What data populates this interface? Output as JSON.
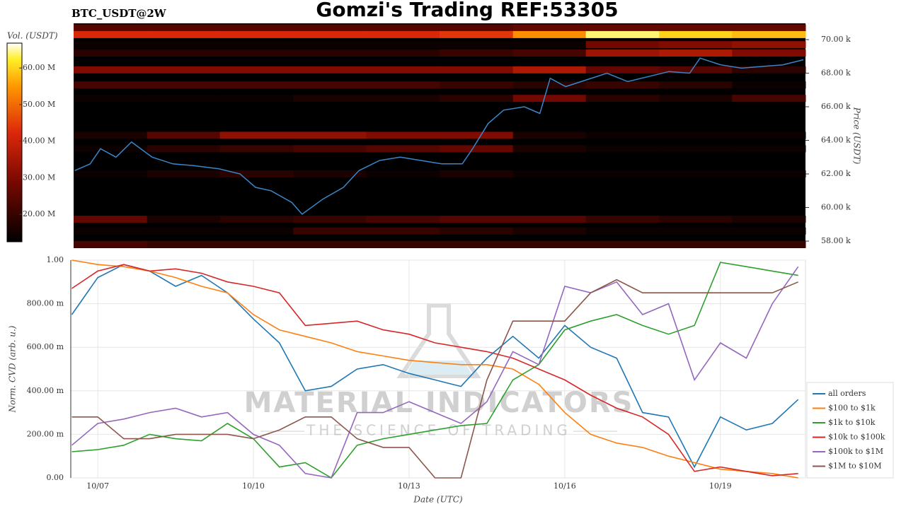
{
  "chart_data": [
    {
      "type": "heatmap",
      "title": "Gomzi's Trading REF:53305",
      "subtitle": "BTC_USDT@2W",
      "y_label": "Price (USDT)",
      "xlim": [
        6.48,
        20.64
      ],
      "ylim": [
        57580,
        70970
      ],
      "yticks": [
        {
          "value": 58000,
          "label": "58.00 k"
        },
        {
          "value": 60000,
          "label": "60.00 k"
        },
        {
          "value": 62000,
          "label": "62.00 k"
        },
        {
          "value": 64000,
          "label": "64.00 k"
        },
        {
          "value": 66000,
          "label": "66.00 k"
        },
        {
          "value": 68000,
          "label": "68.00 k"
        },
        {
          "value": 70000,
          "label": "70.00 k"
        }
      ],
      "colorbar": {
        "label": "Vol. (USDT)",
        "lim": [
          12500000,
          66800000
        ],
        "ticks": [
          {
            "value": 20000000,
            "label": "20.00 M"
          },
          {
            "value": 30000000,
            "label": "30.00 M"
          },
          {
            "value": 40000000,
            "label": "40.00 M"
          },
          {
            "value": 50000000,
            "label": "50.00 M"
          },
          {
            "value": 60000000,
            "label": "60.00 M"
          }
        ]
      },
      "x_edges": [
        6.48,
        7.9,
        9.31,
        10.73,
        12.14,
        13.56,
        14.98,
        16.39,
        17.81,
        19.22,
        20.64
      ],
      "levels": [
        70700,
        70300,
        69700,
        69200,
        68200,
        67300,
        66500,
        64300,
        63500,
        62000,
        59300,
        58600,
        57800
      ],
      "volumes": [
        [
          24000000,
          24000000,
          24000000,
          24000000,
          24000000,
          24000000,
          26000000,
          26000000,
          26000000,
          26000000
        ],
        [
          42000000,
          42000000,
          42000000,
          42000000,
          42000000,
          44000000,
          54000000,
          64000000,
          60000000,
          58000000
        ],
        [
          14000000,
          14000000,
          14000000,
          14000000,
          14000000,
          14000000,
          14000000,
          28000000,
          30000000,
          32000000
        ],
        [
          18000000,
          18000000,
          18000000,
          18000000,
          18000000,
          20000000,
          22000000,
          34000000,
          36000000,
          30000000
        ],
        [
          30000000,
          30000000,
          30000000,
          30000000,
          30000000,
          30000000,
          36000000,
          26000000,
          24000000,
          18000000
        ],
        [
          22000000,
          22000000,
          22000000,
          22000000,
          22000000,
          20000000,
          18000000,
          20000000,
          18000000,
          14000000
        ],
        [
          14000000,
          14000000,
          14000000,
          16000000,
          16000000,
          18000000,
          28000000,
          18000000,
          16000000,
          22000000
        ],
        [
          16000000,
          24000000,
          32000000,
          32000000,
          30000000,
          30000000,
          16000000,
          14000000,
          14000000,
          14000000
        ],
        [
          14000000,
          18000000,
          20000000,
          22000000,
          24000000,
          26000000,
          16000000,
          14000000,
          14000000,
          14000000
        ],
        [
          14000000,
          16000000,
          18000000,
          16000000,
          14000000,
          16000000,
          14000000,
          14000000,
          14000000,
          14000000
        ],
        [
          26000000,
          16000000,
          18000000,
          20000000,
          22000000,
          24000000,
          24000000,
          20000000,
          18000000,
          16000000
        ],
        [
          14000000,
          14000000,
          14000000,
          20000000,
          20000000,
          18000000,
          16000000,
          14000000,
          14000000,
          14000000
        ],
        [
          22000000,
          20000000,
          20000000,
          20000000,
          20000000,
          20000000,
          20000000,
          20000000,
          20000000,
          20000000
        ]
      ],
      "price": {
        "color": "#3a86c8",
        "x": [
          6.5,
          6.8,
          7.0,
          7.3,
          7.6,
          8.0,
          8.4,
          8.8,
          9.3,
          9.7,
          10.0,
          10.3,
          10.7,
          10.9,
          11.3,
          11.7,
          12.0,
          12.4,
          12.8,
          13.2,
          13.6,
          14.0,
          14.2,
          14.5,
          14.8,
          15.2,
          15.5,
          15.7,
          16.0,
          16.4,
          16.8,
          17.2,
          17.6,
          18.0,
          18.4,
          18.6,
          19.0,
          19.4,
          19.8,
          20.2,
          20.6
        ],
        "values": [
          62200,
          62600,
          63500,
          63000,
          63900,
          63000,
          62600,
          62500,
          62300,
          62000,
          61200,
          61000,
          60300,
          59600,
          60500,
          61200,
          62200,
          62800,
          63000,
          62800,
          62600,
          62600,
          63500,
          65000,
          65800,
          66000,
          65600,
          67700,
          67200,
          67600,
          68000,
          67500,
          67800,
          68100,
          68000,
          68900,
          68500,
          68300,
          68400,
          68500,
          68800
        ]
      }
    },
    {
      "type": "line",
      "x_label": "Date (UTC)",
      "y_label": "Norm. CVD (arb. u.)",
      "watermark": [
        "MATERIAL INDICATORS",
        "THE SCIENCE OF TRADING"
      ],
      "xlim": [
        6.48,
        20.64
      ],
      "xticks": [
        {
          "value": 7,
          "label": "10/07"
        },
        {
          "value": 10,
          "label": "10/10"
        },
        {
          "value": 13,
          "label": "10/13"
        },
        {
          "value": 16,
          "label": "10/16"
        },
        {
          "value": 19,
          "label": "10/19"
        }
      ],
      "ylim": [
        0,
        1
      ],
      "yticks": [
        {
          "value": 0,
          "label": "0.00"
        },
        {
          "value": 0.2,
          "label": "200.00 m"
        },
        {
          "value": 0.4,
          "label": "400.00 m"
        },
        {
          "value": 0.6,
          "label": "600.00 m"
        },
        {
          "value": 0.8,
          "label": "800.00 m"
        },
        {
          "value": 1,
          "label": "1.00"
        }
      ],
      "grid": true,
      "legend": "lower right",
      "x": [
        6.5,
        7,
        7.5,
        8,
        8.5,
        9,
        9.5,
        10,
        10.5,
        11,
        11.5,
        12,
        12.5,
        13,
        13.5,
        14,
        14.5,
        15,
        15.5,
        16,
        16.5,
        17,
        17.5,
        18,
        18.5,
        19,
        19.5,
        20,
        20.5
      ],
      "series": [
        {
          "name": "all orders",
          "color": "#1f77b4",
          "values": [
            0.75,
            0.92,
            0.98,
            0.95,
            0.88,
            0.93,
            0.85,
            0.73,
            0.62,
            0.4,
            0.42,
            0.5,
            0.52,
            0.48,
            0.45,
            0.42,
            0.55,
            0.65,
            0.55,
            0.7,
            0.6,
            0.55,
            0.3,
            0.28,
            0.05,
            0.28,
            0.22,
            0.25,
            0.36
          ]
        },
        {
          "name": "$100 to $1k",
          "color": "#ff7f0e",
          "values": [
            1.0,
            0.98,
            0.97,
            0.95,
            0.92,
            0.88,
            0.85,
            0.75,
            0.68,
            0.65,
            0.62,
            0.58,
            0.56,
            0.54,
            0.53,
            0.52,
            0.52,
            0.5,
            0.43,
            0.3,
            0.2,
            0.16,
            0.14,
            0.1,
            0.07,
            0.04,
            0.03,
            0.02,
            0.0
          ]
        },
        {
          "name": "$1k to $10k",
          "color": "#2ca02c",
          "values": [
            0.12,
            0.13,
            0.15,
            0.2,
            0.18,
            0.17,
            0.25,
            0.18,
            0.05,
            0.07,
            0.0,
            0.15,
            0.18,
            0.2,
            0.22,
            0.24,
            0.25,
            0.45,
            0.52,
            0.68,
            0.72,
            0.75,
            0.7,
            0.66,
            0.7,
            0.99,
            0.97,
            0.95,
            0.93
          ]
        },
        {
          "name": "$10k to $100k",
          "color": "#d62728",
          "values": [
            0.87,
            0.95,
            0.98,
            0.95,
            0.96,
            0.94,
            0.9,
            0.88,
            0.85,
            0.7,
            0.71,
            0.72,
            0.68,
            0.66,
            0.62,
            0.6,
            0.58,
            0.55,
            0.5,
            0.45,
            0.38,
            0.32,
            0.28,
            0.2,
            0.03,
            0.05,
            0.03,
            0.01,
            0.02
          ]
        },
        {
          "name": "$100k to $1M",
          "color": "#9467bd",
          "values": [
            0.15,
            0.25,
            0.27,
            0.3,
            0.32,
            0.28,
            0.3,
            0.2,
            0.15,
            0.02,
            0.0,
            0.3,
            0.3,
            0.35,
            0.3,
            0.25,
            0.35,
            0.58,
            0.52,
            0.88,
            0.85,
            0.9,
            0.75,
            0.8,
            0.45,
            0.62,
            0.55,
            0.8,
            0.97
          ]
        },
        {
          "name": "$1M to $10M",
          "color": "#8c564b",
          "values": [
            0.28,
            0.28,
            0.18,
            0.18,
            0.2,
            0.2,
            0.2,
            0.18,
            0.22,
            0.28,
            0.28,
            0.18,
            0.14,
            0.14,
            0.0,
            0.0,
            0.45,
            0.72,
            0.72,
            0.72,
            0.85,
            0.91,
            0.85,
            0.85,
            0.85,
            0.85,
            0.85,
            0.85,
            0.9
          ]
        }
      ]
    }
  ]
}
